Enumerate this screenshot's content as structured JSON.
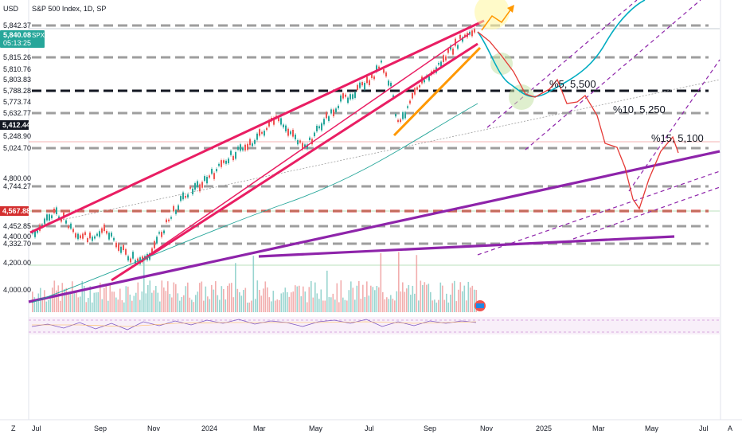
{
  "header": {
    "currency": "USD",
    "symbol_title": "S&P 500 Index, 1D, SP"
  },
  "price_tag": {
    "symbol": "SPX",
    "price": "5,840.08",
    "countdown": "05:13:25"
  },
  "bottom_bar": {
    "left_glyph": "Z",
    "right_glyph": "A"
  },
  "chart_data": {
    "type": "line",
    "title": "S&P 500 Index, 1D, SP",
    "y_unit": "USD",
    "x_tick_labels": [
      "Jul",
      "Sep",
      "Nov",
      "2024",
      "Mar",
      "May",
      "Jul",
      "Sep",
      "Nov",
      "2025",
      "Mar",
      "May",
      "Jul"
    ],
    "y_tick_labels": [
      "5,842.37",
      "5,815.26",
      "5,810.76",
      "5,803.83",
      "5,788.28",
      "5,773.74",
      "5,632.77",
      "5,248.90",
      "5,024.70",
      "4,800.00",
      "4,744.27",
      "4,452.85",
      "4,400.00",
      "4,332.70",
      "4,200.00",
      "4,000.00"
    ],
    "highlighted_labels": [
      {
        "value": "5,412.44",
        "color": "#131722"
      },
      {
        "value": "4,567.88",
        "color": "#d32f2f"
      }
    ],
    "levels": [
      {
        "price": 5842.37,
        "style": "dashed-grey"
      },
      {
        "price": 5815.26,
        "style": "dashed-grey"
      },
      {
        "price": 5788.28,
        "style": "dashed-black"
      },
      {
        "price": 5632.77,
        "style": "dashed-grey"
      },
      {
        "price": 5024.7,
        "style": "dashed-grey"
      },
      {
        "price": 4744.27,
        "style": "dashed-grey"
      },
      {
        "price": 4567.88,
        "style": "dashed-red"
      },
      {
        "price": 4452.85,
        "style": "dashed-grey"
      },
      {
        "price": 4332.7,
        "style": "dashed-grey"
      }
    ],
    "projection": {
      "color": "#e53935",
      "points": [
        {
          "date": "2024-11",
          "price": 5840
        },
        {
          "date": "2024-12",
          "price": 5788
        },
        {
          "date": "2025-01",
          "price": 5700
        },
        {
          "date": "2025-02",
          "price": 5700
        },
        {
          "date": "2025-03",
          "price": 5250
        },
        {
          "date": "2025-04",
          "price": 4567
        },
        {
          "date": "2025-05",
          "price": 5100
        }
      ]
    },
    "annotations": [
      {
        "text": "%5,  5,500"
      },
      {
        "text": "%10,  5,250"
      },
      {
        "text": "%15,  5,100"
      }
    ],
    "colors": {
      "candles_up": "#26a69a",
      "candles_down": "#ef5350",
      "channel": "#e91e63",
      "support": "#8e24aa",
      "trend_short": "#ff9800",
      "moving_average": "#00bcd4",
      "projection": "#e53935"
    }
  }
}
